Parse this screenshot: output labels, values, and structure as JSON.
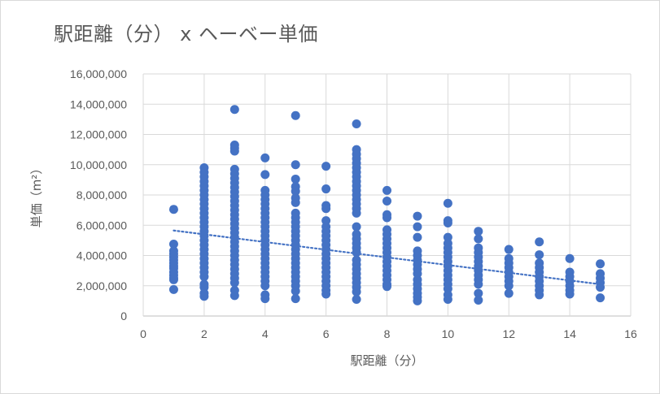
{
  "chart_data": {
    "type": "scatter",
    "title": "駅距離（分） x ヘーベー単価",
    "xlabel": "駅距離（分）",
    "ylabel": "単価（m²）",
    "xlim": [
      0,
      16
    ],
    "ylim": [
      0,
      16000000
    ],
    "x_ticks": [
      "0",
      "2",
      "4",
      "6",
      "8",
      "10",
      "12",
      "14",
      "16"
    ],
    "y_ticks": [
      "0",
      "2,000,000",
      "4,000,000",
      "6,000,000",
      "8,000,000",
      "10,000,000",
      "12,000,000",
      "14,000,000",
      "16,000,000"
    ],
    "grid": true,
    "legend": "none",
    "trendline": {
      "style": "dotted",
      "x": [
        1,
        15
      ],
      "y": [
        5650000,
        2100000
      ]
    },
    "series": [
      {
        "color": "#4472c4",
        "points": [
          [
            1,
            7050000
          ],
          [
            1,
            4750000
          ],
          [
            1,
            4300000
          ],
          [
            1,
            4100000
          ],
          [
            1,
            3900000
          ],
          [
            1,
            3700000
          ],
          [
            1,
            3500000
          ],
          [
            1,
            3300000
          ],
          [
            1,
            3150000
          ],
          [
            1,
            2900000
          ],
          [
            1,
            2700000
          ],
          [
            1,
            2500000
          ],
          [
            1,
            2400000
          ],
          [
            1,
            1750000
          ],
          [
            2,
            9800000
          ],
          [
            2,
            9500000
          ],
          [
            2,
            9200000
          ],
          [
            2,
            8900000
          ],
          [
            2,
            8600000
          ],
          [
            2,
            8300000
          ],
          [
            2,
            8000000
          ],
          [
            2,
            7700000
          ],
          [
            2,
            7400000
          ],
          [
            2,
            7100000
          ],
          [
            2,
            6800000
          ],
          [
            2,
            6500000
          ],
          [
            2,
            6200000
          ],
          [
            2,
            5900000
          ],
          [
            2,
            5600000
          ],
          [
            2,
            5300000
          ],
          [
            2,
            5000000
          ],
          [
            2,
            4700000
          ],
          [
            2,
            4400000
          ],
          [
            2,
            4100000
          ],
          [
            2,
            3800000
          ],
          [
            2,
            3500000
          ],
          [
            2,
            3200000
          ],
          [
            2,
            2900000
          ],
          [
            2,
            2600000
          ],
          [
            2,
            2100000
          ],
          [
            2,
            1900000
          ],
          [
            2,
            1500000
          ],
          [
            2,
            1300000
          ],
          [
            3,
            13650000
          ],
          [
            3,
            11300000
          ],
          [
            3,
            11100000
          ],
          [
            3,
            10900000
          ],
          [
            3,
            9700000
          ],
          [
            3,
            9400000
          ],
          [
            3,
            9100000
          ],
          [
            3,
            8800000
          ],
          [
            3,
            8500000
          ],
          [
            3,
            8200000
          ],
          [
            3,
            7900000
          ],
          [
            3,
            7600000
          ],
          [
            3,
            7300000
          ],
          [
            3,
            7000000
          ],
          [
            3,
            6700000
          ],
          [
            3,
            6400000
          ],
          [
            3,
            6100000
          ],
          [
            3,
            5800000
          ],
          [
            3,
            5500000
          ],
          [
            3,
            5200000
          ],
          [
            3,
            4900000
          ],
          [
            3,
            4600000
          ],
          [
            3,
            4300000
          ],
          [
            3,
            4000000
          ],
          [
            3,
            3700000
          ],
          [
            3,
            3400000
          ],
          [
            3,
            3100000
          ],
          [
            3,
            2800000
          ],
          [
            3,
            2500000
          ],
          [
            3,
            2200000
          ],
          [
            3,
            1700000
          ],
          [
            3,
            1350000
          ],
          [
            4,
            10450000
          ],
          [
            4,
            9350000
          ],
          [
            4,
            8300000
          ],
          [
            4,
            8000000
          ],
          [
            4,
            7700000
          ],
          [
            4,
            7400000
          ],
          [
            4,
            7100000
          ],
          [
            4,
            6800000
          ],
          [
            4,
            6500000
          ],
          [
            4,
            6200000
          ],
          [
            4,
            5900000
          ],
          [
            4,
            5600000
          ],
          [
            4,
            5300000
          ],
          [
            4,
            5000000
          ],
          [
            4,
            4700000
          ],
          [
            4,
            4400000
          ],
          [
            4,
            4100000
          ],
          [
            4,
            3800000
          ],
          [
            4,
            3500000
          ],
          [
            4,
            3200000
          ],
          [
            4,
            2900000
          ],
          [
            4,
            2600000
          ],
          [
            4,
            2300000
          ],
          [
            4,
            2000000
          ],
          [
            4,
            1400000
          ],
          [
            4,
            1150000
          ],
          [
            5,
            13250000
          ],
          [
            5,
            10000000
          ],
          [
            5,
            9050000
          ],
          [
            5,
            8550000
          ],
          [
            5,
            8250000
          ],
          [
            5,
            7800000
          ],
          [
            5,
            7500000
          ],
          [
            5,
            6800000
          ],
          [
            5,
            6500000
          ],
          [
            5,
            6200000
          ],
          [
            5,
            5900000
          ],
          [
            5,
            5600000
          ],
          [
            5,
            5300000
          ],
          [
            5,
            5000000
          ],
          [
            5,
            4700000
          ],
          [
            5,
            4400000
          ],
          [
            5,
            4100000
          ],
          [
            5,
            3800000
          ],
          [
            5,
            3500000
          ],
          [
            5,
            3200000
          ],
          [
            5,
            2900000
          ],
          [
            5,
            2600000
          ],
          [
            5,
            2300000
          ],
          [
            5,
            2000000
          ],
          [
            5,
            1650000
          ],
          [
            5,
            1150000
          ],
          [
            6,
            9900000
          ],
          [
            6,
            8400000
          ],
          [
            6,
            7300000
          ],
          [
            6,
            7100000
          ],
          [
            6,
            6300000
          ],
          [
            6,
            5900000
          ],
          [
            6,
            5600000
          ],
          [
            6,
            5300000
          ],
          [
            6,
            5000000
          ],
          [
            6,
            4700000
          ],
          [
            6,
            4400000
          ],
          [
            6,
            4100000
          ],
          [
            6,
            3800000
          ],
          [
            6,
            3500000
          ],
          [
            6,
            3200000
          ],
          [
            6,
            2900000
          ],
          [
            6,
            2600000
          ],
          [
            6,
            2300000
          ],
          [
            6,
            2000000
          ],
          [
            6,
            1700000
          ],
          [
            6,
            1450000
          ],
          [
            7,
            12700000
          ],
          [
            7,
            11000000
          ],
          [
            7,
            10700000
          ],
          [
            7,
            10400000
          ],
          [
            7,
            10100000
          ],
          [
            7,
            9800000
          ],
          [
            7,
            9500000
          ],
          [
            7,
            9200000
          ],
          [
            7,
            8900000
          ],
          [
            7,
            8600000
          ],
          [
            7,
            8300000
          ],
          [
            7,
            8000000
          ],
          [
            7,
            7700000
          ],
          [
            7,
            7400000
          ],
          [
            7,
            7100000
          ],
          [
            7,
            6800000
          ],
          [
            7,
            5900000
          ],
          [
            7,
            5400000
          ],
          [
            7,
            5100000
          ],
          [
            7,
            4800000
          ],
          [
            7,
            4500000
          ],
          [
            7,
            4200000
          ],
          [
            7,
            3700000
          ],
          [
            7,
            3400000
          ],
          [
            7,
            3100000
          ],
          [
            7,
            2800000
          ],
          [
            7,
            2500000
          ],
          [
            7,
            2200000
          ],
          [
            7,
            1900000
          ],
          [
            7,
            1600000
          ],
          [
            7,
            1100000
          ],
          [
            8,
            8300000
          ],
          [
            8,
            7600000
          ],
          [
            8,
            6700000
          ],
          [
            8,
            6500000
          ],
          [
            8,
            5700000
          ],
          [
            8,
            5400000
          ],
          [
            8,
            5100000
          ],
          [
            8,
            4800000
          ],
          [
            8,
            4500000
          ],
          [
            8,
            4200000
          ],
          [
            8,
            3900000
          ],
          [
            8,
            3600000
          ],
          [
            8,
            3300000
          ],
          [
            8,
            3000000
          ],
          [
            8,
            2700000
          ],
          [
            8,
            2400000
          ],
          [
            8,
            2100000
          ],
          [
            8,
            1950000
          ],
          [
            9,
            6600000
          ],
          [
            9,
            5900000
          ],
          [
            9,
            5200000
          ],
          [
            9,
            4300000
          ],
          [
            9,
            4000000
          ],
          [
            9,
            3700000
          ],
          [
            9,
            3400000
          ],
          [
            9,
            3100000
          ],
          [
            9,
            2800000
          ],
          [
            9,
            2400000
          ],
          [
            9,
            2100000
          ],
          [
            9,
            1800000
          ],
          [
            9,
            1500000
          ],
          [
            9,
            1250000
          ],
          [
            9,
            1000000
          ],
          [
            10,
            7450000
          ],
          [
            10,
            6300000
          ],
          [
            10,
            6150000
          ],
          [
            10,
            5200000
          ],
          [
            10,
            4800000
          ],
          [
            10,
            4500000
          ],
          [
            10,
            4200000
          ],
          [
            10,
            3900000
          ],
          [
            10,
            3600000
          ],
          [
            10,
            3300000
          ],
          [
            10,
            3000000
          ],
          [
            10,
            2700000
          ],
          [
            10,
            2400000
          ],
          [
            10,
            2100000
          ],
          [
            10,
            1800000
          ],
          [
            10,
            1400000
          ],
          [
            10,
            1100000
          ],
          [
            11,
            5600000
          ],
          [
            11,
            5100000
          ],
          [
            11,
            4500000
          ],
          [
            11,
            4200000
          ],
          [
            11,
            3900000
          ],
          [
            11,
            3600000
          ],
          [
            11,
            3300000
          ],
          [
            11,
            3000000
          ],
          [
            11,
            2700000
          ],
          [
            11,
            2400000
          ],
          [
            11,
            2100000
          ],
          [
            11,
            1500000
          ],
          [
            11,
            1050000
          ],
          [
            12,
            4400000
          ],
          [
            12,
            3800000
          ],
          [
            12,
            3500000
          ],
          [
            12,
            3200000
          ],
          [
            12,
            2900000
          ],
          [
            12,
            2600000
          ],
          [
            12,
            2300000
          ],
          [
            12,
            2000000
          ],
          [
            12,
            1500000
          ],
          [
            13,
            4900000
          ],
          [
            13,
            4050000
          ],
          [
            13,
            3500000
          ],
          [
            13,
            3200000
          ],
          [
            13,
            2900000
          ],
          [
            13,
            2600000
          ],
          [
            13,
            2300000
          ],
          [
            13,
            2000000
          ],
          [
            13,
            1700000
          ],
          [
            13,
            1400000
          ],
          [
            14,
            3800000
          ],
          [
            14,
            2900000
          ],
          [
            14,
            2600000
          ],
          [
            14,
            2300000
          ],
          [
            14,
            2000000
          ],
          [
            14,
            1700000
          ],
          [
            14,
            1450000
          ],
          [
            15,
            3450000
          ],
          [
            15,
            2800000
          ],
          [
            15,
            2500000
          ],
          [
            15,
            2200000
          ],
          [
            15,
            1900000
          ],
          [
            15,
            1200000
          ]
        ]
      }
    ]
  }
}
